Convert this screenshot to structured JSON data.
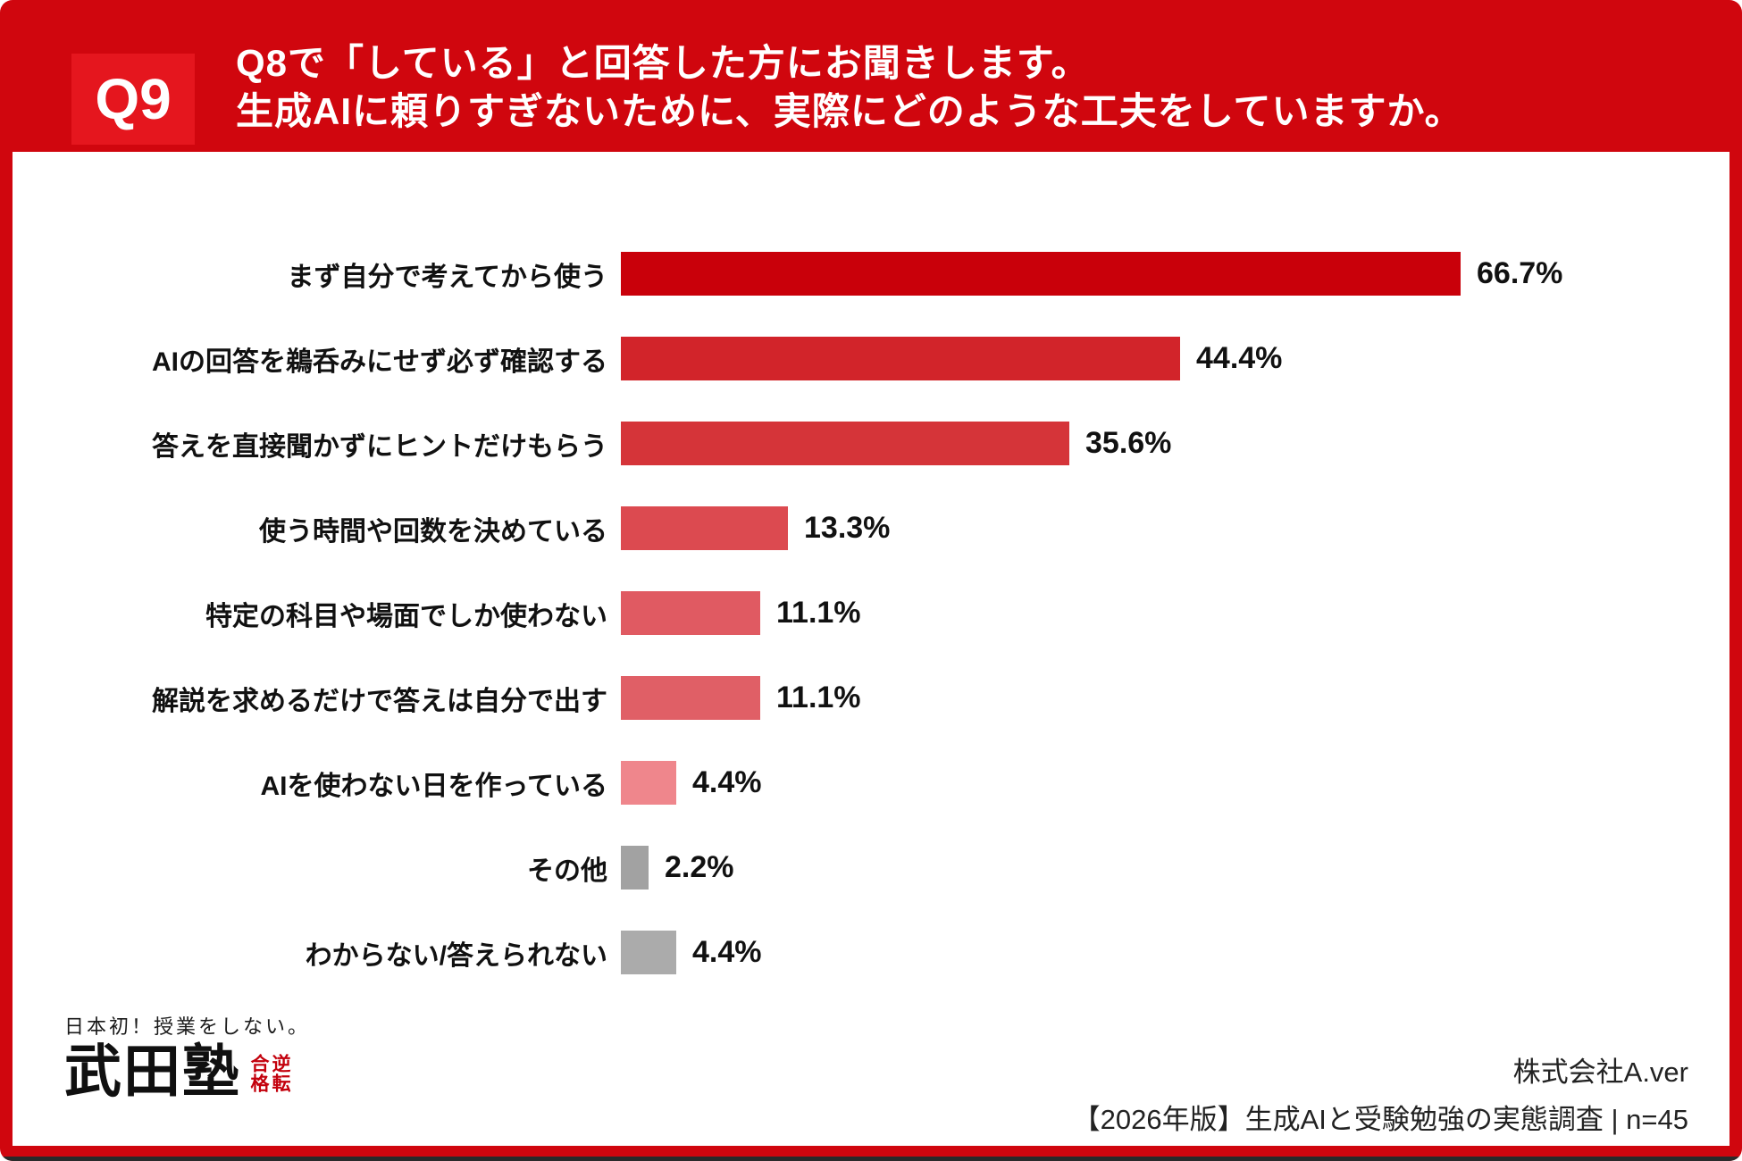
{
  "header": {
    "badge": "Q9",
    "title_line1": "Q8で「している」と回答した方にお聞きします。",
    "title_line2": "生成AIに頼りすぎないために、実際にどのような工夫をしていますか。"
  },
  "chart_data": {
    "type": "bar",
    "orientation": "horizontal",
    "unit": "%",
    "categories": [
      "まず自分で考えてから使う",
      "AIの回答を鵜呑みにせず必ず確認する",
      "答えを直接聞かずにヒントだけもらう",
      "使う時間や回数を決めている",
      "特定の科目や場面でしか使わない",
      "解説を求めるだけで答えは自分で出す",
      "AIを使わない日を作っている",
      "その他",
      "わからない/答えられない"
    ],
    "values": [
      66.7,
      44.4,
      35.6,
      13.3,
      11.1,
      11.1,
      4.4,
      2.2,
      4.4
    ],
    "value_labels": [
      "66.7%",
      "44.4%",
      "35.6%",
      "13.3%",
      "11.1%",
      "11.1%",
      "4.4%",
      "2.2%",
      "4.4%"
    ],
    "bar_colors": [
      "#c9000a",
      "#d2242a",
      "#d53439",
      "#dc4a50",
      "#e05a62",
      "#e05f66",
      "#ef868c",
      "#a2a2a2",
      "#ababab"
    ],
    "xlim": [
      0,
      70
    ],
    "grid": false,
    "legend": null,
    "xlabel": "",
    "ylabel": ""
  },
  "footer": {
    "logo_tagline": "日本初！授業をしない。",
    "logo_name": "武田塾",
    "logo_seal": "逆転合格",
    "company": "株式会社A.ver",
    "survey": "【2026年版】生成AIと受験勉強の実態調査 | n=45"
  },
  "colors": {
    "frame_red": "#d0060e",
    "badge_red": "#e5161e",
    "panel_white": "#ffffff",
    "text_dark": "#111111"
  }
}
